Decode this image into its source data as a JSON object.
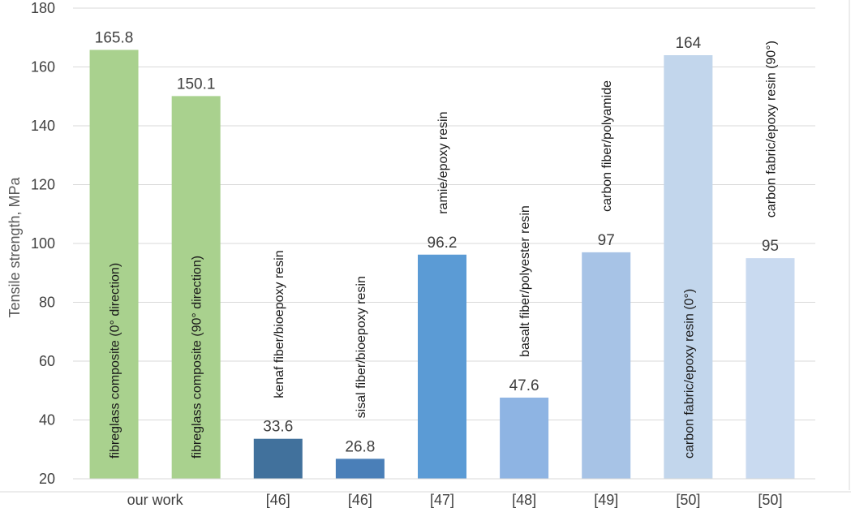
{
  "chart_data": {
    "type": "bar",
    "ylabel": "Tensile strength, MPa",
    "ylim": [
      20,
      180
    ],
    "yticks": [
      20,
      40,
      60,
      80,
      100,
      120,
      140,
      160,
      180
    ],
    "grid": true,
    "categories": [
      "our work",
      "our work",
      "[46]",
      "[46]",
      "[47]",
      "[48]",
      "[49]",
      "[50]",
      "[50]"
    ],
    "x_groups": [
      {
        "label": "our work",
        "span": 2
      },
      {
        "label": "[46]",
        "span": 1
      },
      {
        "label": "[46]",
        "span": 1
      },
      {
        "label": "[47]",
        "span": 1
      },
      {
        "label": "[48]",
        "span": 1
      },
      {
        "label": "[49]",
        "span": 1
      },
      {
        "label": "[50]",
        "span": 1
      },
      {
        "label": "[50]",
        "span": 1
      }
    ],
    "bars": [
      {
        "value": 165.8,
        "value_label": "165.8",
        "text": "fibreglass composite (0° direction)",
        "color": "#a9d18e"
      },
      {
        "value": 150.1,
        "value_label": "150.1",
        "text": "fibreglass composite (90° direction)",
        "color": "#a9d18e"
      },
      {
        "value": 33.6,
        "value_label": "33.6",
        "text": "kenaf fiber/bioepoxy resin",
        "color": "#41719c"
      },
      {
        "value": 26.8,
        "value_label": "26.8",
        "text": "sisal fiber/bioepoxy  resin",
        "color": "#4a7fb8"
      },
      {
        "value": 96.2,
        "value_label": "96.2",
        "text": "ramie/epoxy resin",
        "color": "#5b9bd5"
      },
      {
        "value": 47.6,
        "value_label": "47.6",
        "text": "basalt fiber/polyester resin",
        "color": "#8eb4e3"
      },
      {
        "value": 97,
        "value_label": "97",
        "text": "carbon fiber/polyamide",
        "color": "#a7c3e6"
      },
      {
        "value": 164,
        "value_label": "164",
        "text": "carbon fabric/epoxy resin (0°)",
        "color": "#c2d6ec"
      },
      {
        "value": 95,
        "value_label": "95",
        "text": "carbon fabric/epoxy resin (90°)",
        "color": "#c9daf0"
      }
    ]
  }
}
